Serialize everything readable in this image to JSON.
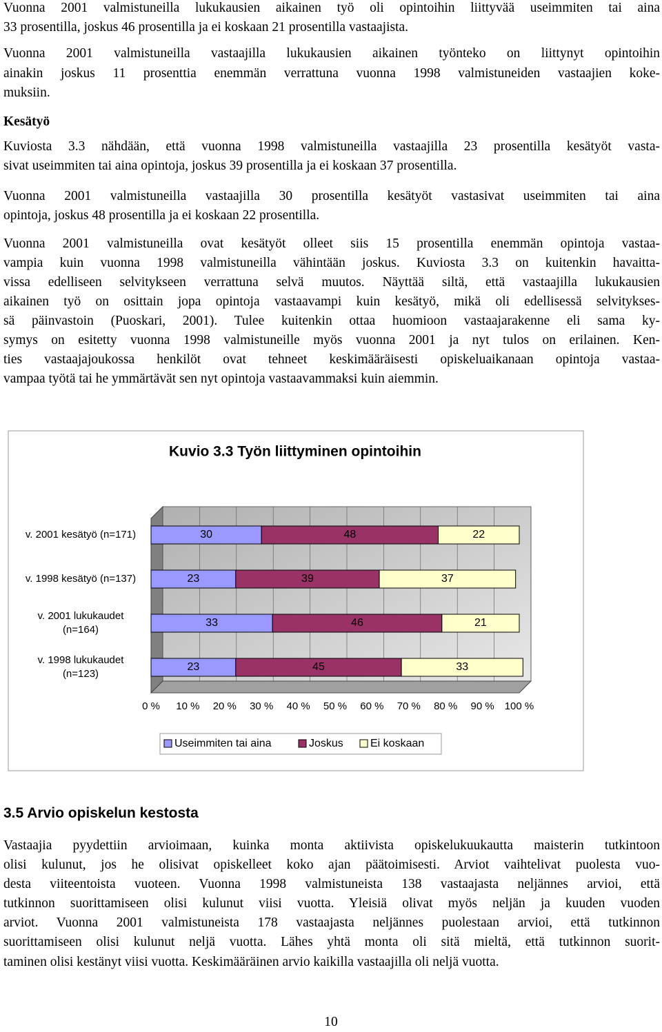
{
  "page": {
    "paragraphs_before": [
      [
        "Vuonna 2001 valmistuneilla lukukausien aikainen työ oli opintoihin liittyvää useimmiten tai aina",
        "33 prosentilla, joskus 46 prosentilla ja ei koskaan 21 prosentilla vastaajista."
      ],
      [
        "Vuonna 2001 valmistuneilla vastaajilla lukukausien aikainen työnteko on liittynyt opintoihin",
        "ainakin joskus 11 prosenttia enemmän verrattuna vuonna 1998 valmistuneiden vastaajien koke-",
        "muksiin."
      ]
    ],
    "subheading": "Kesätyö",
    "paragraphs_after": [
      [
        "Kuviosta 3.3 nähdään, että vuonna 1998 valmistuneilla vastaajilla 23 prosentilla kesätyöt vasta-",
        "sivat useimmiten tai aina opintoja, joskus 39 prosentilla ja ei koskaan 37 prosentilla."
      ],
      [
        "Vuonna 2001 valmistuneilla vastaajilla 30 prosentilla kesätyöt vastasivat useimmiten tai aina",
        "opintoja, joskus 48 prosentilla ja ei koskaan 22 prosentilla."
      ],
      [
        "Vuonna 2001 valmistuneilla ovat kesätyöt olleet siis 15 prosentilla enemmän opintoja vastaa-",
        "vampia kuin vuonna 1998 valmistuneilla vähintään joskus. Kuviosta 3.3 on kuitenkin havaitta-",
        "vissa edelliseen selvitykseen verrattuna selvä muutos. Näyttää siltä, että vastaajilla lukukausien",
        "aikainen työ on osittain jopa opintoja vastaavampi kuin kesätyö, mikä oli edellisessä selvitykses-",
        "sä päinvastoin (Puoskari, 2001).  Tulee kuitenkin ottaa huomioon vastaajarakenne eli sama ky-",
        "symys on esitetty vuonna 1998 valmistuneille myös vuonna 2001 ja nyt tulos on erilainen. Ken-",
        "ties vastaajajoukossa henkilöt ovat tehneet keskimääräisesti opiskeluaikanaan opintoja vastaa-",
        "vampaa työtä tai he ymmärtävät sen nyt opintoja vastaavammaksi kuin aiemmin."
      ]
    ]
  },
  "chart_data": {
    "type": "stacked-bar-horizontal",
    "title": "Kuvio 3.3 Työn liittyminen opintoihin",
    "categories": [
      "v. 2001 kesätyö (n=171)",
      "v. 1998 kesätyö (n=137)",
      "v. 2001 lukukaudet (n=164)",
      "v. 1998 lukukaudet (n=123)"
    ],
    "series": [
      {
        "name": "Useimmiten tai aina",
        "color": "#9999ff",
        "values": [
          30,
          23,
          33,
          23
        ]
      },
      {
        "name": "Joskus",
        "color": "#993366",
        "values": [
          48,
          39,
          46,
          45
        ]
      },
      {
        "name": "Ei koskaan",
        "color": "#ffffcc",
        "values": [
          22,
          37,
          21,
          33
        ]
      }
    ],
    "xlim": [
      0,
      100
    ],
    "xticks": [
      {
        "value": 0,
        "label": "0 %"
      },
      {
        "value": 10,
        "label": "10 %"
      },
      {
        "value": 20,
        "label": "20 %"
      },
      {
        "value": 30,
        "label": "30 %"
      },
      {
        "value": 40,
        "label": "40 %"
      },
      {
        "value": 50,
        "label": "50 %"
      },
      {
        "value": 60,
        "label": "60 %"
      },
      {
        "value": 70,
        "label": "70 %"
      },
      {
        "value": 80,
        "label": "80 %"
      },
      {
        "value": 90,
        "label": "90 %"
      },
      {
        "value": 100,
        "label": "100 %"
      }
    ],
    "legend": "bottom"
  },
  "section": {
    "heading": "3.5 Arvio opiskelun kestosta",
    "lines": [
      "Vastaajia pyydettiin arvioimaan, kuinka monta aktiivista opiskelukuukautta maisterin tutkintoon",
      "olisi kulunut, jos he olisivat opiskelleet koko ajan päätoimisesti. Arviot vaihtelivat puolesta vuo-",
      "desta viiteentoista vuoteen. Vuonna 1998 valmistuneista 138 vastaajasta neljännes arvioi, että",
      "tutkinnon suorittamiseen olisi kulunut viisi vuotta. Yleisiä olivat myös neljän ja kuuden vuoden",
      "arviot. Vuonna 2001 valmistuneista 178 vastaajasta neljännes puolestaan arvioi, että tutkinnon",
      "suorittamiseen olisi kulunut neljä vuotta. Lähes yhtä monta oli sitä mieltä, että tutkinnon suorit-",
      "taminen olisi kestänyt viisi vuotta. Keskimääräinen arvio kaikilla vastaajilla oli neljä vuotta."
    ]
  },
  "page_number": "10"
}
